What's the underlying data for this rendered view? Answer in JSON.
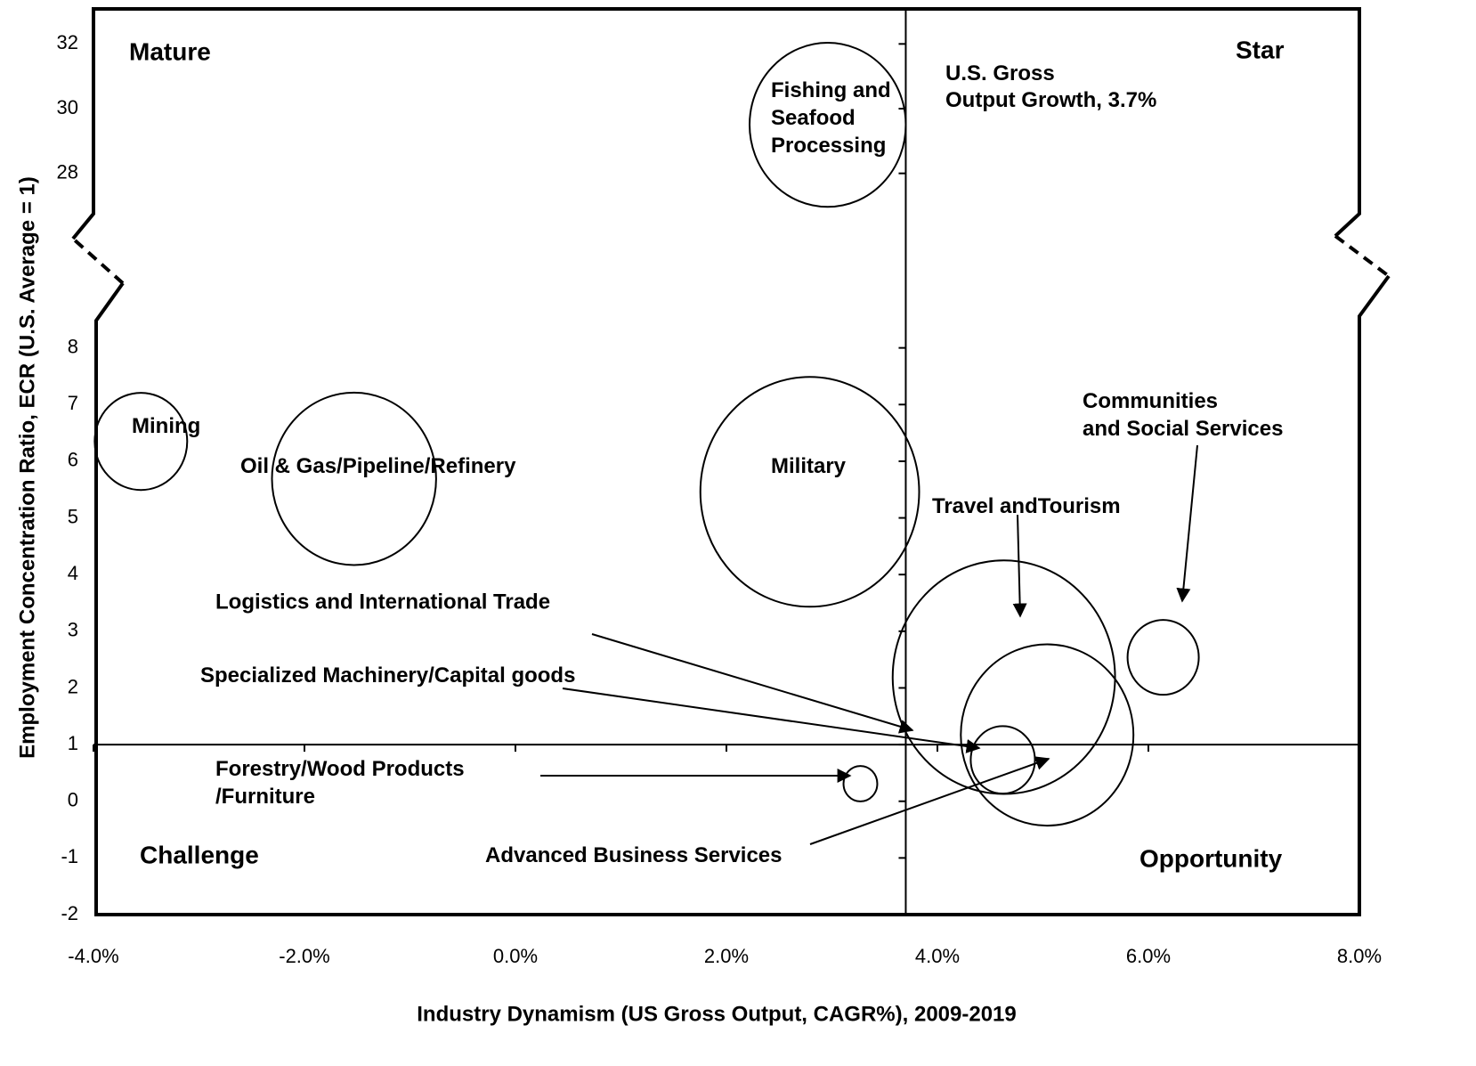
{
  "chart_data": {
    "type": "bubble",
    "xlabel": "Industry Dynamism (US Gross Output, CAGR%), 2009-2019",
    "ylabel": "Employment Concentration Ratio, ECR (U.S. Average = 1)",
    "xlim": [
      -4,
      8
    ],
    "xticks": [
      {
        "value": -4,
        "label": "-4.0%"
      },
      {
        "value": -2,
        "label": "-2.0%"
      },
      {
        "value": 0,
        "label": "0.0%"
      },
      {
        "value": 2,
        "label": "2.0%"
      },
      {
        "value": 4,
        "label": "4.0%"
      },
      {
        "value": 6,
        "label": "6.0%"
      },
      {
        "value": 8,
        "label": "8.0%"
      }
    ],
    "ylim": [
      -2,
      33
    ],
    "axis_break": [
      9,
      27
    ],
    "yticks": [
      -2,
      -1,
      0,
      1,
      2,
      3,
      4,
      5,
      6,
      7,
      8,
      28,
      30,
      32
    ],
    "ref_x": 3.7,
    "ref_y": 1,
    "labels": [
      [
        "Mining"
      ],
      [
        "Oil & Gas/Pipeline/Refinery"
      ],
      [
        "Fishing and",
        "Seafood",
        "Processing"
      ],
      [
        "Military"
      ],
      [
        "Travel andTourism"
      ],
      [
        "Communities",
        "and Social Services"
      ],
      [
        "Advanced Business Services"
      ],
      [
        "Specialized Machinery/Capital goods"
      ],
      [
        "Forestry/Wood Products",
        "/Furniture"
      ]
    ],
    "x": [
      -3.55,
      -1.53,
      2.96,
      2.79,
      4.63,
      6.14,
      5.04,
      4.62,
      3.27
    ],
    "y": [
      6.35,
      5.69,
      29.5,
      5.46,
      2.19,
      2.54,
      1.17,
      0.73,
      0.31
    ],
    "sizes": [
      27,
      85,
      77,
      151,
      156,
      16,
      94,
      13,
      3.6
    ],
    "annotations": [
      "Mature",
      "Star",
      "Challenge",
      "Opportunity",
      "Logistics and International Trade"
    ],
    "ref_label": [
      "U.S. Gross",
      "Output Growth, 3.7%"
    ]
  }
}
